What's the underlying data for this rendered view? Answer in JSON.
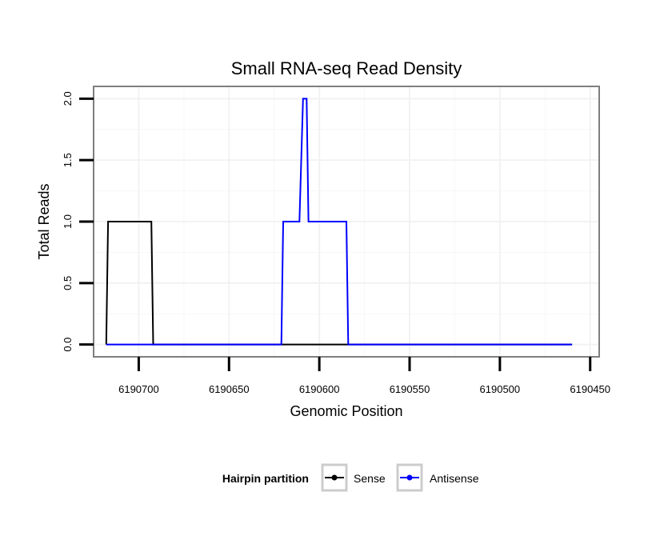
{
  "chart_data": {
    "type": "line",
    "title": "Small RNA-seq Read Density",
    "xlabel": "Genomic Position",
    "ylabel": "Total Reads",
    "x_reversed": true,
    "xlim": [
      6190725,
      6190445
    ],
    "ylim": [
      -0.1,
      2.1
    ],
    "x_ticks": [
      6190700,
      6190650,
      6190600,
      6190550,
      6190500,
      6190450
    ],
    "x_tick_labels": [
      "6190700",
      "6190650",
      "6190600",
      "6190550",
      "6190500",
      "6190450"
    ],
    "y_ticks": [
      0.0,
      0.5,
      1.0,
      1.5,
      2.0
    ],
    "y_tick_labels": [
      "0.0",
      "0.5",
      "1.0",
      "1.5",
      "2.0"
    ],
    "grid": true,
    "legend": {
      "title": "Hairpin partition",
      "position": "bottom",
      "entries": [
        "Sense",
        "Antisense"
      ]
    },
    "series": [
      {
        "name": "Sense",
        "color": "#000000",
        "x": [
          6190718,
          6190717,
          6190693,
          6190692,
          6190560,
          6190460
        ],
        "y": [
          0,
          1,
          1,
          0,
          0,
          0
        ]
      },
      {
        "name": "Antisense",
        "color": "#0000ff",
        "x": [
          6190718,
          6190692,
          6190621,
          6190620,
          6190612,
          6190611,
          6190609,
          6190608,
          6190607,
          6190606,
          6190604,
          6190603,
          6190585,
          6190584,
          6190560,
          6190460
        ],
        "y": [
          0,
          0,
          0,
          1,
          1,
          1,
          2,
          2,
          2,
          1,
          1,
          1,
          1,
          0,
          0,
          0
        ]
      }
    ]
  }
}
